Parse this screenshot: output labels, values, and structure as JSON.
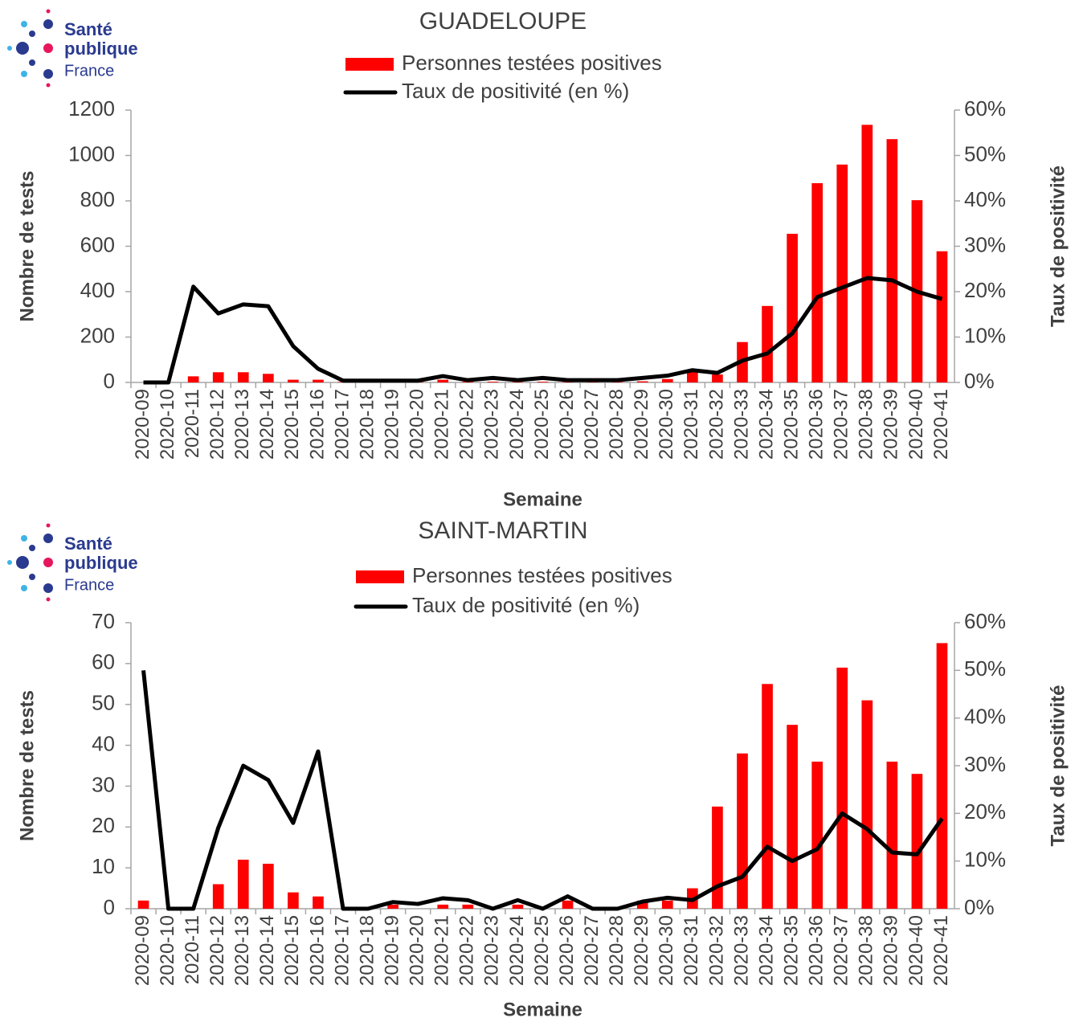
{
  "logo": [
    "Santé",
    "publique",
    "France"
  ],
  "chart_data": [
    {
      "type": "bar_line",
      "title": "GUADELOUPE",
      "xlabel": "Semaine",
      "ylabel": "Nombre de tests",
      "y2label": "Taux de positivité",
      "categories": [
        "2020-09",
        "2020-10",
        "2020-11",
        "2020-12",
        "2020-13",
        "2020-14",
        "2020-15",
        "2020-16",
        "2020-17",
        "2020-18",
        "2020-19",
        "2020-20",
        "2020-21",
        "2020-22",
        "2020-23",
        "2020-24",
        "2020-25",
        "2020-26",
        "2020-27",
        "2020-28",
        "2020-29",
        "2020-30",
        "2020-31",
        "2020-32",
        "2020-33",
        "2020-34",
        "2020-35",
        "2020-36",
        "2020-37",
        "2020-38",
        "2020-39",
        "2020-40",
        "2020-41"
      ],
      "series": [
        {
          "name": "Personnes testées positives",
          "color": "#ff0000",
          "kind": "bar",
          "values": [
            0,
            0,
            27,
            45,
            45,
            38,
            12,
            12,
            2,
            0,
            0,
            2,
            12,
            3,
            3,
            2,
            3,
            2,
            2,
            2,
            5,
            15,
            55,
            35,
            178,
            337,
            655,
            878,
            960,
            1135,
            1072,
            803,
            578
          ]
        },
        {
          "name": "Taux de positivité (en %)",
          "color": "#000000",
          "kind": "line",
          "axis": "y2",
          "values": [
            0,
            0,
            21.1,
            15.2,
            17.2,
            16.8,
            8,
            3,
            0.4,
            0.4,
            0.4,
            0.4,
            1.4,
            0.5,
            1,
            0.5,
            1,
            0.5,
            0.5,
            0.5,
            1,
            1.5,
            2.7,
            2.1,
            4.8,
            6.4,
            10.8,
            18.8,
            20.9,
            23,
            22.5,
            20,
            18.4
          ]
        }
      ],
      "ylim": [
        0,
        1200
      ],
      "yticks": [
        0,
        200,
        400,
        600,
        800,
        1000,
        1200
      ],
      "y2lim": [
        0,
        60
      ],
      "y2ticks": [
        {
          "value": 0,
          "label": "0%"
        },
        {
          "value": 10,
          "label": "10%"
        },
        {
          "value": 20,
          "label": "20%"
        },
        {
          "value": 30,
          "label": "30%"
        },
        {
          "value": 40,
          "label": "40%"
        },
        {
          "value": 50,
          "label": "50%"
        },
        {
          "value": 60,
          "label": "60%"
        }
      ]
    },
    {
      "type": "bar_line",
      "title": "SAINT-MARTIN",
      "xlabel": "Semaine",
      "ylabel": "Nombre de tests",
      "y2label": "Taux de positivité",
      "categories": [
        "2020-09",
        "2020-10",
        "2020-11",
        "2020-12",
        "2020-13",
        "2020-14",
        "2020-15",
        "2020-16",
        "2020-17",
        "2020-18",
        "2020-19",
        "2020-20",
        "2020-21",
        "2020-22",
        "2020-23",
        "2020-24",
        "2020-25",
        "2020-26",
        "2020-27",
        "2020-28",
        "2020-29",
        "2020-30",
        "2020-31",
        "2020-32",
        "2020-33",
        "2020-34",
        "2020-35",
        "2020-36",
        "2020-37",
        "2020-38",
        "2020-39",
        "2020-40",
        "2020-41"
      ],
      "series": [
        {
          "name": "Personnes testées positives",
          "color": "#ff0000",
          "kind": "bar",
          "values": [
            2,
            0,
            0,
            6,
            12,
            11,
            4,
            3,
            0,
            0,
            1,
            0,
            1,
            1,
            0,
            1,
            0,
            2,
            0,
            0,
            2,
            2,
            5,
            25,
            38,
            55,
            45,
            36,
            59,
            51,
            36,
            33,
            65
          ]
        },
        {
          "name": "Taux de positivité (en %)",
          "color": "#000000",
          "kind": "line",
          "axis": "y2",
          "values": [
            50,
            0,
            0,
            17,
            30,
            27,
            18,
            33,
            0,
            0,
            1.4,
            1,
            2.2,
            1.8,
            0,
            1.8,
            0,
            2.6,
            0,
            0,
            1.5,
            2.3,
            1.8,
            4.7,
            6.7,
            13,
            10,
            12.5,
            20,
            16.7,
            11.8,
            11.4,
            18.9
          ]
        }
      ],
      "ylim": [
        0,
        70
      ],
      "yticks": [
        0,
        10,
        20,
        30,
        40,
        50,
        60,
        70
      ],
      "y2lim": [
        0,
        60
      ],
      "y2ticks": [
        {
          "value": 0,
          "label": "0%"
        },
        {
          "value": 10,
          "label": "10%"
        },
        {
          "value": 20,
          "label": "20%"
        },
        {
          "value": 30,
          "label": "30%"
        },
        {
          "value": 40,
          "label": "40%"
        },
        {
          "value": 50,
          "label": "50%"
        },
        {
          "value": 60,
          "label": "60%"
        }
      ]
    }
  ]
}
